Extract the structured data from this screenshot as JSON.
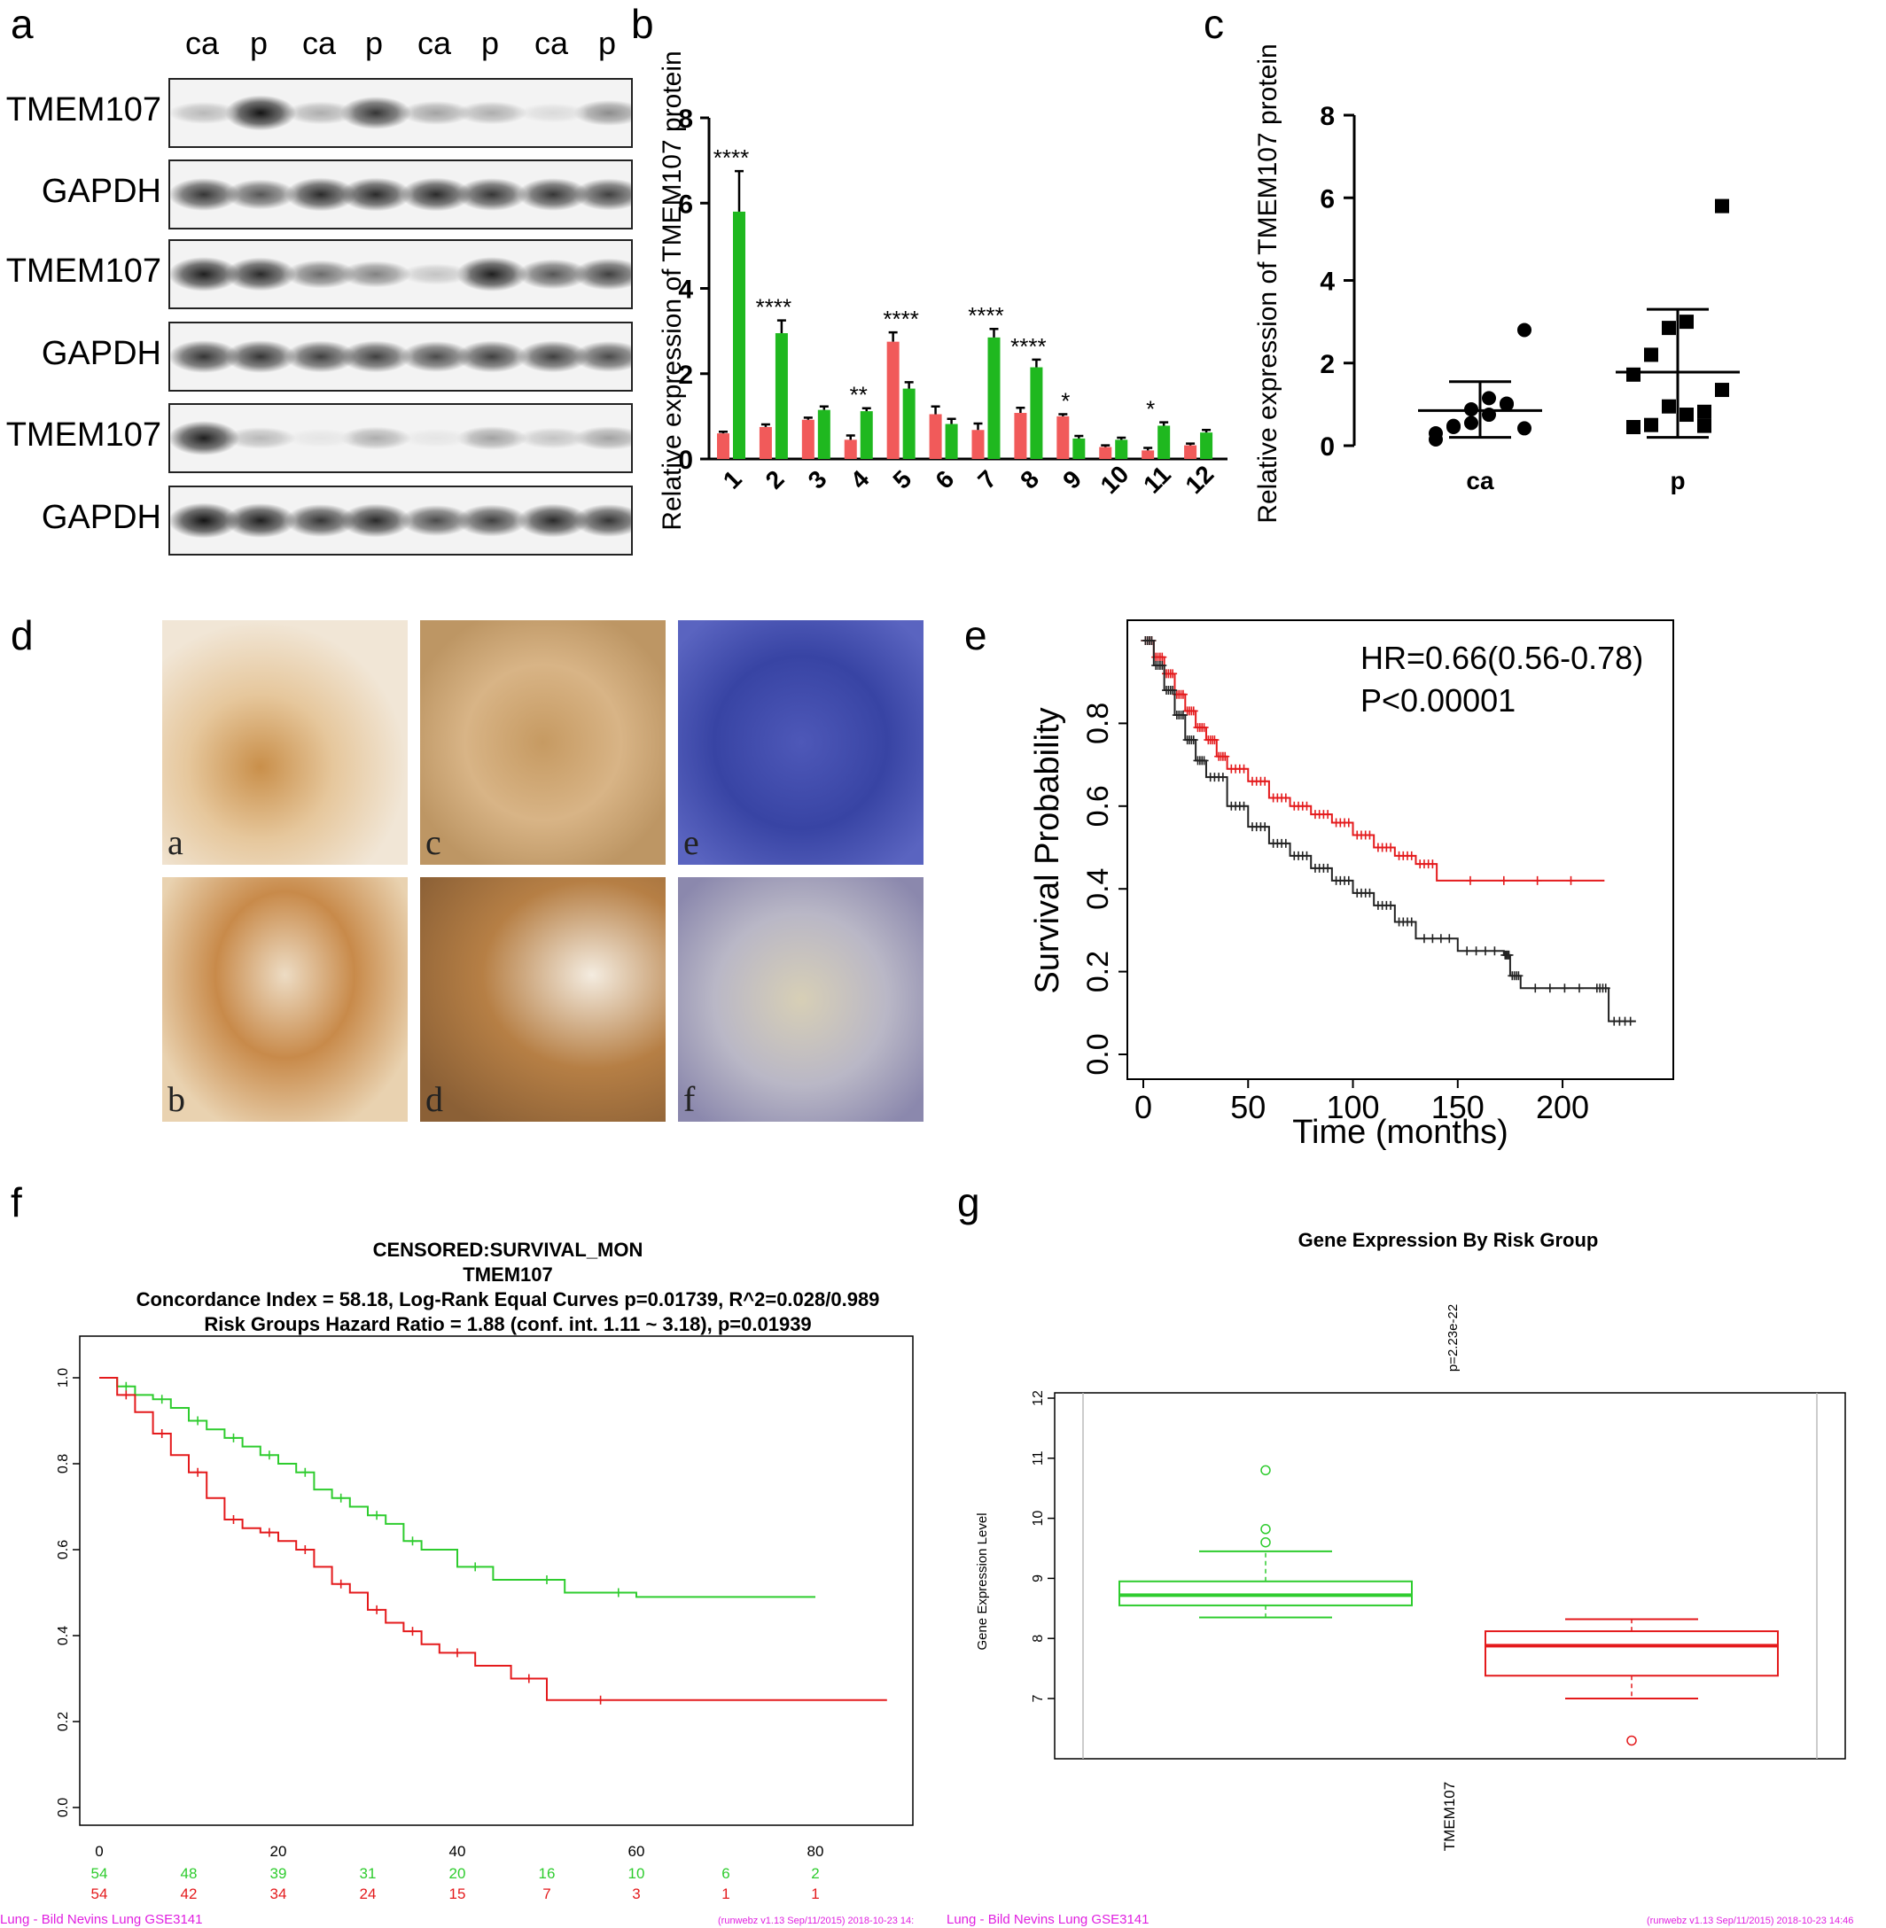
{
  "panels": {
    "a": {
      "label": "a",
      "lanes": [
        "ca",
        "p",
        "ca",
        "p",
        "ca",
        "p",
        "ca",
        "p"
      ],
      "blots": [
        {
          "name": "TMEM107"
        },
        {
          "name": "GAPDH"
        },
        {
          "name": "TMEM107"
        },
        {
          "name": "GAPDH"
        },
        {
          "name": "TMEM107"
        },
        {
          "name": "GAPDH"
        }
      ]
    },
    "b": {
      "label": "b"
    },
    "c": {
      "label": "c"
    },
    "d": {
      "label": "d",
      "tiles": [
        "a",
        "c",
        "e",
        "b",
        "d",
        "f"
      ]
    },
    "e": {
      "label": "e"
    },
    "f": {
      "label": "f"
    },
    "g": {
      "label": "g"
    }
  },
  "colors": {
    "red": "#f15a5a",
    "green": "#1fb81f",
    "km_red": "#e41a1c",
    "km_green": "#2ecc2e",
    "magenta": "#e020e0"
  },
  "chart_data": [
    {
      "id": "b",
      "type": "bar",
      "ylabel": "Relative expression of TMEM107 protein",
      "ylim": [
        0,
        8
      ],
      "yticks": [
        "0",
        "2",
        "4",
        "6",
        "8"
      ],
      "categories": [
        "1",
        "2",
        "3",
        "4",
        "5",
        "6",
        "7",
        "8",
        "9",
        "10",
        "11",
        "12"
      ],
      "series": [
        {
          "color": "#f15a5a",
          "values": [
            0.6,
            0.75,
            0.92,
            0.45,
            2.75,
            1.05,
            0.68,
            1.08,
            1.0,
            0.28,
            0.2,
            0.32
          ],
          "errors": [
            0.04,
            0.06,
            0.05,
            0.1,
            0.22,
            0.18,
            0.15,
            0.12,
            0.05,
            0.04,
            0.06,
            0.04
          ]
        },
        {
          "color": "#1fb81f",
          "values": [
            5.8,
            2.95,
            1.15,
            1.12,
            1.65,
            0.82,
            2.85,
            2.15,
            0.48,
            0.45,
            0.78,
            0.62
          ],
          "errors": [
            0.95,
            0.3,
            0.08,
            0.07,
            0.15,
            0.12,
            0.2,
            0.18,
            0.06,
            0.05,
            0.08,
            0.06
          ]
        }
      ],
      "annotations": [
        "****",
        "****",
        "",
        "**",
        "****",
        "",
        "****",
        "****",
        "*",
        "",
        "*",
        ""
      ]
    },
    {
      "id": "c",
      "type": "scatter",
      "ylabel": "Relative expression of TMEM107 protein",
      "ylim": [
        0,
        8
      ],
      "yticks": [
        "0",
        "2",
        "4",
        "6",
        "8"
      ],
      "categories": [
        "ca",
        "p"
      ],
      "groups": [
        {
          "name": "ca",
          "marker": "circle",
          "mean": 0.85,
          "sd_low": 0.2,
          "sd_high": 1.55,
          "points": [
            0.3,
            0.45,
            0.55,
            0.75,
            1.0,
            0.42,
            0.15,
            0.48,
            0.88,
            1.15,
            1.02,
            2.8
          ]
        },
        {
          "name": "p",
          "marker": "square",
          "mean": 1.78,
          "sd_low": 0.2,
          "sd_high": 3.3,
          "points": [
            0.45,
            0.5,
            0.95,
            0.75,
            0.82,
            1.35,
            1.72,
            2.2,
            2.85,
            3.0,
            0.48,
            5.8
          ]
        }
      ]
    },
    {
      "id": "e",
      "type": "line",
      "xlabel": "Time (months)",
      "ylabel": "Survival Probability",
      "xlim": [
        0,
        240
      ],
      "ylim": [
        -0.02,
        1.0
      ],
      "xticks": [
        "0",
        "50",
        "100",
        "150",
        "200"
      ],
      "yticks": [
        "0.0",
        "0.2",
        "0.4",
        "0.6",
        "0.8"
      ],
      "annotations": [
        "HR=0.66(0.56-0.78)",
        "P<0.00001"
      ],
      "series": [
        {
          "color": "#e41a1c",
          "x": [
            0,
            5,
            10,
            15,
            20,
            25,
            30,
            35,
            40,
            50,
            60,
            70,
            80,
            90,
            100,
            110,
            120,
            130,
            140,
            220
          ],
          "y": [
            1.0,
            0.96,
            0.92,
            0.87,
            0.83,
            0.79,
            0.76,
            0.72,
            0.69,
            0.66,
            0.62,
            0.6,
            0.58,
            0.56,
            0.53,
            0.5,
            0.48,
            0.46,
            0.42,
            0.42
          ]
        },
        {
          "color": "#222222",
          "x": [
            0,
            5,
            10,
            15,
            20,
            25,
            30,
            40,
            50,
            60,
            70,
            80,
            90,
            100,
            110,
            120,
            130,
            150,
            172,
            175,
            180,
            215,
            222,
            235
          ],
          "y": [
            1.0,
            0.94,
            0.88,
            0.82,
            0.76,
            0.71,
            0.67,
            0.6,
            0.55,
            0.51,
            0.48,
            0.45,
            0.42,
            0.39,
            0.36,
            0.32,
            0.28,
            0.25,
            0.24,
            0.19,
            0.16,
            0.16,
            0.08,
            0.08
          ]
        }
      ]
    },
    {
      "id": "f",
      "type": "line",
      "title_lines": [
        "CENSORED:SURVIVAL_MON",
        "TMEM107",
        "Concordance Index = 58.18, Log-Rank Equal Curves p=0.01739, R^2=0.028/0.989",
        "Risk Groups Hazard Ratio = 1.88 (conf. int. 1.11 ~ 3.18), p=0.01939"
      ],
      "xlim": [
        0,
        90
      ],
      "ylim": [
        0,
        1.0
      ],
      "xticks": [
        "0",
        "20",
        "40",
        "60",
        "80"
      ],
      "yticks": [
        "0.0",
        "0.2",
        "0.4",
        "0.6",
        "0.8",
        "1.0"
      ],
      "series": [
        {
          "color": "#2ecc2e",
          "x": [
            0,
            2,
            4,
            6,
            8,
            10,
            12,
            14,
            16,
            18,
            20,
            22,
            24,
            26,
            28,
            30,
            32,
            34,
            36,
            40,
            44,
            48,
            52,
            56,
            60,
            80
          ],
          "y": [
            1.0,
            0.98,
            0.96,
            0.95,
            0.93,
            0.9,
            0.88,
            0.86,
            0.84,
            0.82,
            0.8,
            0.78,
            0.74,
            0.72,
            0.7,
            0.68,
            0.66,
            0.62,
            0.6,
            0.56,
            0.53,
            0.53,
            0.5,
            0.5,
            0.49,
            0.49
          ]
        },
        {
          "color": "#e41a1c",
          "x": [
            0,
            2,
            4,
            6,
            8,
            10,
            12,
            14,
            16,
            18,
            20,
            22,
            24,
            26,
            28,
            30,
            32,
            34,
            36,
            38,
            42,
            46,
            50,
            52,
            60,
            88
          ],
          "y": [
            1.0,
            0.96,
            0.92,
            0.87,
            0.82,
            0.78,
            0.72,
            0.67,
            0.65,
            0.64,
            0.62,
            0.6,
            0.56,
            0.52,
            0.5,
            0.46,
            0.43,
            0.41,
            0.38,
            0.36,
            0.33,
            0.3,
            0.25,
            0.25,
            0.25,
            0.25
          ]
        }
      ],
      "risk_table": {
        "x": [
          0,
          10,
          20,
          30,
          40,
          50,
          60,
          70,
          80
        ],
        "green": [
          "54",
          "48",
          "39",
          "31",
          "20",
          "16",
          "10",
          "6",
          "2"
        ],
        "red": [
          "54",
          "42",
          "34",
          "24",
          "15",
          "7",
          "3",
          "1",
          "1"
        ]
      },
      "footer": [
        "Lung - Bild Nevins Lung GSE3141",
        "(runwebz v1.13 Sep/11/2015) 2018-10-23 14:"
      ]
    },
    {
      "id": "g",
      "type": "box",
      "title": "Gene Expression By Risk Group",
      "ylabel": "Gene Expression Level",
      "pvalue": "p=2.23e-22",
      "xcategory": "TMEM107",
      "ylim": [
        6.1,
        12.1
      ],
      "yticks": [
        "7",
        "8",
        "9",
        "10",
        "11",
        "12"
      ],
      "boxes": [
        {
          "color": "#2ecc2e",
          "min": 8.35,
          "q1": 8.55,
          "median": 8.72,
          "q3": 8.95,
          "max": 9.45,
          "outliers": [
            9.6,
            9.82,
            10.8
          ]
        },
        {
          "color": "#e41a1c",
          "min": 7.0,
          "q1": 7.38,
          "median": 7.88,
          "q3": 8.12,
          "max": 8.32,
          "outliers": [
            6.3
          ]
        }
      ],
      "footer": [
        "Lung - Bild Nevins Lung GSE3141",
        "(runwebz v1.13 Sep/11/2015) 2018-10-23 14:46"
      ]
    }
  ]
}
